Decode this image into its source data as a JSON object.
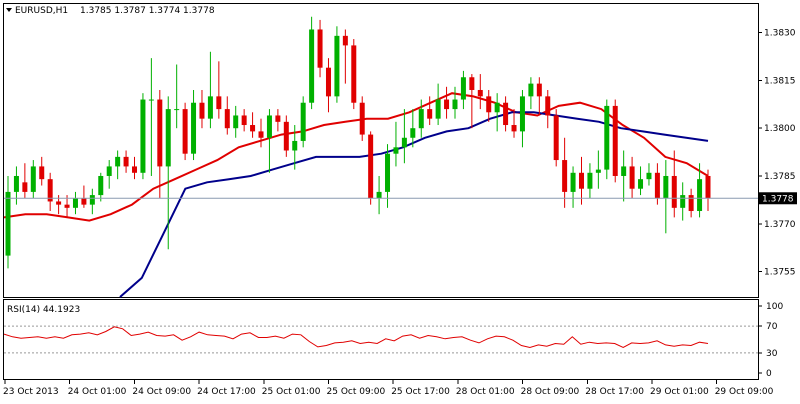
{
  "header": {
    "symbol": "EURUSD,H1",
    "ohlc": "1.3785 1.3787 1.3774 1.3778"
  },
  "rsi_panel": {
    "label": "RSI(14) 44.1923"
  },
  "chart_data": [
    {
      "type": "candlestick",
      "title": "EURUSD,H1",
      "ohlc_readout": {
        "open": 1.3785,
        "high": 1.3787,
        "low": 1.3774,
        "close": 1.3778
      },
      "ylim": [
        1.3747,
        1.3839
      ],
      "y_ticks": [
        "1.3830",
        "1.3815",
        "1.3800",
        "1.3785",
        "1.3770",
        "1.3755"
      ],
      "x_ticks": [
        "23 Oct 2013",
        "24 Oct 01:00",
        "24 Oct 09:00",
        "24 Oct 17:00",
        "25 Oct 01:00",
        "25 Oct 09:00",
        "25 Oct 17:00",
        "28 Oct 01:00",
        "28 Oct 09:00",
        "28 Oct 17:00",
        "29 Oct 01:00",
        "29 Oct 09:00"
      ],
      "current_price": "1.3778",
      "bull_color": "#00b000",
      "bear_color": "#e00000",
      "candles": [
        [
          1.376,
          1.3785,
          1.3756,
          1.378
        ],
        [
          1.378,
          1.3788,
          1.3776,
          1.3785
        ],
        [
          1.3783,
          1.3789,
          1.3778,
          1.378
        ],
        [
          1.378,
          1.379,
          1.3778,
          1.3788
        ],
        [
          1.3788,
          1.3791,
          1.3782,
          1.3784
        ],
        [
          1.3784,
          1.3786,
          1.3774,
          1.3777
        ],
        [
          1.3777,
          1.3779,
          1.3773,
          1.3776
        ],
        [
          1.3776,
          1.3779,
          1.3772,
          1.3775
        ],
        [
          1.3775,
          1.378,
          1.3773,
          1.3778
        ],
        [
          1.3778,
          1.3782,
          1.3775,
          1.3776
        ],
        [
          1.3776,
          1.3781,
          1.3773,
          1.3779
        ],
        [
          1.3779,
          1.3786,
          1.3777,
          1.3785
        ],
        [
          1.3785,
          1.379,
          1.3781,
          1.3788
        ],
        [
          1.3788,
          1.3793,
          1.3784,
          1.3791
        ],
        [
          1.3791,
          1.3793,
          1.3786,
          1.3788
        ],
        [
          1.3788,
          1.3791,
          1.3784,
          1.3786
        ],
        [
          1.3786,
          1.3811,
          1.3784,
          1.3809
        ],
        [
          1.3809,
          1.3822,
          1.3785,
          1.3809
        ],
        [
          1.3809,
          1.3812,
          1.3778,
          1.3788
        ],
        [
          1.3788,
          1.381,
          1.3762,
          1.3806
        ],
        [
          1.3806,
          1.382,
          1.38,
          1.3806
        ],
        [
          1.3806,
          1.3808,
          1.379,
          1.3792
        ],
        [
          1.3792,
          1.3812,
          1.379,
          1.3808
        ],
        [
          1.3808,
          1.3812,
          1.38,
          1.3803
        ],
        [
          1.3803,
          1.3824,
          1.38,
          1.381
        ],
        [
          1.381,
          1.3821,
          1.3803,
          1.3806
        ],
        [
          1.3806,
          1.381,
          1.3798,
          1.38
        ],
        [
          1.38,
          1.3807,
          1.3797,
          1.3804
        ],
        [
          1.3804,
          1.3806,
          1.3799,
          1.3801
        ],
        [
          1.3801,
          1.3805,
          1.3797,
          1.3799
        ],
        [
          1.3799,
          1.3803,
          1.3794,
          1.3797
        ],
        [
          1.3797,
          1.3806,
          1.3786,
          1.3804
        ],
        [
          1.3804,
          1.3806,
          1.3799,
          1.3802
        ],
        [
          1.3802,
          1.3804,
          1.3791,
          1.3793
        ],
        [
          1.3793,
          1.3801,
          1.3787,
          1.3796
        ],
        [
          1.3796,
          1.381,
          1.3794,
          1.3808
        ],
        [
          1.3808,
          1.3835,
          1.3806,
          1.3831
        ],
        [
          1.3831,
          1.3834,
          1.3816,
          1.3819
        ],
        [
          1.3819,
          1.3822,
          1.3805,
          1.381
        ],
        [
          1.381,
          1.3832,
          1.3808,
          1.3829
        ],
        [
          1.3829,
          1.3831,
          1.3814,
          1.3826
        ],
        [
          1.3826,
          1.3828,
          1.3806,
          1.3808
        ],
        [
          1.3808,
          1.381,
          1.3796,
          1.3798
        ],
        [
          1.3798,
          1.3799,
          1.3776,
          1.3778
        ],
        [
          1.3778,
          1.3785,
          1.3773,
          1.378
        ],
        [
          1.378,
          1.3795,
          1.3775,
          1.3792
        ],
        [
          1.3792,
          1.3802,
          1.3788,
          1.3794
        ],
        [
          1.3794,
          1.3806,
          1.3789,
          1.3797
        ],
        [
          1.3797,
          1.3806,
          1.3794,
          1.38
        ],
        [
          1.38,
          1.3809,
          1.3797,
          1.3806
        ],
        [
          1.3806,
          1.381,
          1.3801,
          1.3803
        ],
        [
          1.3803,
          1.3814,
          1.3801,
          1.3809
        ],
        [
          1.3809,
          1.3813,
          1.3803,
          1.3806
        ],
        [
          1.3806,
          1.3813,
          1.3803,
          1.3809
        ],
        [
          1.3809,
          1.3818,
          1.3806,
          1.3816
        ],
        [
          1.3816,
          1.3817,
          1.38,
          1.3812
        ],
        [
          1.3812,
          1.3817,
          1.3806,
          1.381
        ],
        [
          1.381,
          1.3812,
          1.3802,
          1.3805
        ],
        [
          1.3805,
          1.3811,
          1.3799,
          1.3808
        ],
        [
          1.3808,
          1.381,
          1.3799,
          1.3801
        ],
        [
          1.3801,
          1.3806,
          1.3797,
          1.3799
        ],
        [
          1.3799,
          1.3812,
          1.3794,
          1.381
        ],
        [
          1.381,
          1.3816,
          1.3806,
          1.3814
        ],
        [
          1.3814,
          1.3816,
          1.3804,
          1.381
        ],
        [
          1.381,
          1.3812,
          1.38,
          1.3804
        ],
        [
          1.3804,
          1.3806,
          1.3788,
          1.379
        ],
        [
          1.379,
          1.3797,
          1.3775,
          1.378
        ],
        [
          1.378,
          1.3788,
          1.3775,
          1.3786
        ],
        [
          1.3786,
          1.3791,
          1.3776,
          1.3781
        ],
        [
          1.3781,
          1.3789,
          1.3778,
          1.3786
        ],
        [
          1.3786,
          1.3793,
          1.3781,
          1.3787
        ],
        [
          1.3787,
          1.3809,
          1.3784,
          1.3807
        ],
        [
          1.3807,
          1.3809,
          1.3783,
          1.3785
        ],
        [
          1.3785,
          1.3793,
          1.3777,
          1.3788
        ],
        [
          1.3788,
          1.3791,
          1.3778,
          1.3781
        ],
        [
          1.3781,
          1.3788,
          1.3779,
          1.3784
        ],
        [
          1.3784,
          1.3789,
          1.3782,
          1.3786
        ],
        [
          1.3786,
          1.3789,
          1.3776,
          1.3778
        ],
        [
          1.3778,
          1.379,
          1.3767,
          1.3785
        ],
        [
          1.3785,
          1.3793,
          1.3772,
          1.3775
        ],
        [
          1.3775,
          1.3783,
          1.3771,
          1.3779
        ],
        [
          1.3779,
          1.3781,
          1.3772,
          1.3774
        ],
        [
          1.3774,
          1.3789,
          1.3772,
          1.3784
        ],
        [
          1.3785,
          1.3787,
          1.3774,
          1.3778
        ]
      ],
      "series": [
        {
          "color": "#e00000",
          "y": [
            1.3772,
            1.3773,
            1.3773,
            1.3772,
            1.3771,
            1.3773,
            1.3776,
            1.3781,
            1.3784,
            1.3787,
            1.379,
            1.3794,
            1.3796,
            1.3798,
            1.3799,
            1.3801,
            1.3802,
            1.3803,
            1.3803,
            1.3805,
            1.3808,
            1.3811,
            1.381,
            1.3808,
            1.3805,
            1.3804,
            1.3807,
            1.3808,
            1.3806,
            1.3801,
            1.3797,
            1.3791,
            1.3789,
            1.3785
          ]
        },
        {
          "color": "#00008b",
          "y": [
            1.3747,
            1.3753,
            1.3767,
            1.3781,
            1.3783,
            1.3784,
            1.3785,
            1.3787,
            1.3789,
            1.3791,
            1.3791,
            1.3791,
            1.3792,
            1.3794,
            1.3797,
            1.3799,
            1.38,
            1.3803,
            1.3805,
            1.3805,
            1.3804,
            1.3803,
            1.3802,
            1.38,
            1.3799,
            1.3798,
            1.3797,
            1.3796
          ]
        }
      ]
    },
    {
      "type": "line",
      "title": "RSI(14) 44.1923",
      "ylim": [
        0,
        100
      ],
      "y_ticks": [
        "100",
        "70",
        "30",
        "0"
      ],
      "levels": [
        70,
        30
      ],
      "series": [
        {
          "color": "#e00000",
          "y": [
            58,
            54,
            52,
            53,
            54,
            52,
            54,
            52,
            57,
            58,
            60,
            57,
            62,
            69,
            66,
            56,
            58,
            61,
            56,
            55,
            57,
            49,
            54,
            61,
            57,
            56,
            55,
            51,
            58,
            60,
            53,
            53,
            55,
            52,
            58,
            57,
            47,
            39,
            41,
            45,
            46,
            48,
            44,
            46,
            44,
            51,
            48,
            55,
            57,
            52,
            56,
            54,
            51,
            53,
            54,
            49,
            45,
            51,
            55,
            54,
            49,
            41,
            38,
            42,
            40,
            44,
            43,
            54,
            43,
            46,
            44,
            45,
            44,
            38,
            45,
            44,
            45,
            48,
            42,
            40,
            42,
            41,
            46,
            44
          ]
        }
      ]
    }
  ]
}
